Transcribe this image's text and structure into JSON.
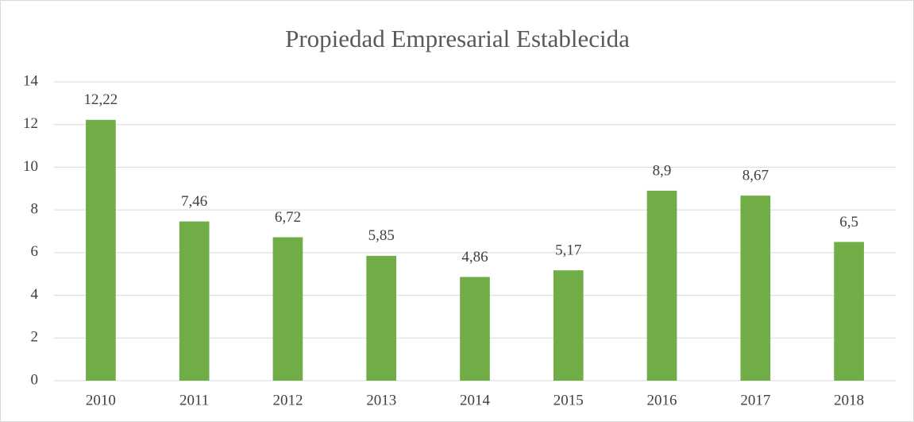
{
  "chart_data": {
    "type": "bar",
    "title": "Propiedad Empresarial Establecida",
    "categories": [
      "2010",
      "2011",
      "2012",
      "2013",
      "2014",
      "2015",
      "2016",
      "2017",
      "2018"
    ],
    "values": [
      12.22,
      7.46,
      6.72,
      5.85,
      4.86,
      5.17,
      8.9,
      8.67,
      6.5
    ],
    "value_labels": [
      "12,22",
      "7,46",
      "6,72",
      "5,85",
      "4,86",
      "5,17",
      "8,9",
      "8,67",
      "6,5"
    ],
    "color": "#70ad47",
    "ylim": [
      0,
      14
    ],
    "yticks": [
      0,
      2,
      4,
      6,
      8,
      10,
      12,
      14
    ],
    "grid": true
  }
}
